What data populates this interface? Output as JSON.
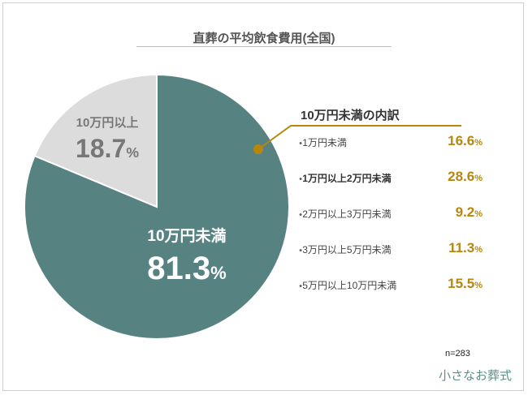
{
  "title": "直葬の平均飲食費用(全国)",
  "chart_data": {
    "type": "pie",
    "slices": [
      {
        "label": "10万円未満",
        "value": 81.3,
        "color": "#578282"
      },
      {
        "label": "10万円以上",
        "value": 18.7,
        "color": "#dcdcdc"
      }
    ],
    "unit": "%"
  },
  "breakdown": {
    "title": "10万円未満の内訳",
    "items": [
      {
        "label": "1万円未満",
        "value": "16.6",
        "bold": false
      },
      {
        "label": "1万円以上2万円未満",
        "value": "28.6",
        "bold": true
      },
      {
        "label": "2万円以上3万円未満",
        "value": "9.2",
        "bold": false
      },
      {
        "label": "3万円以上5万円未満",
        "value": "11.3",
        "bold": false
      },
      {
        "label": "5万円以上10万円未満",
        "value": "15.5",
        "bold": false
      }
    ]
  },
  "sample": "n=283",
  "logo": "小さなお葬式",
  "colors": {
    "accent": "#b8860b"
  }
}
